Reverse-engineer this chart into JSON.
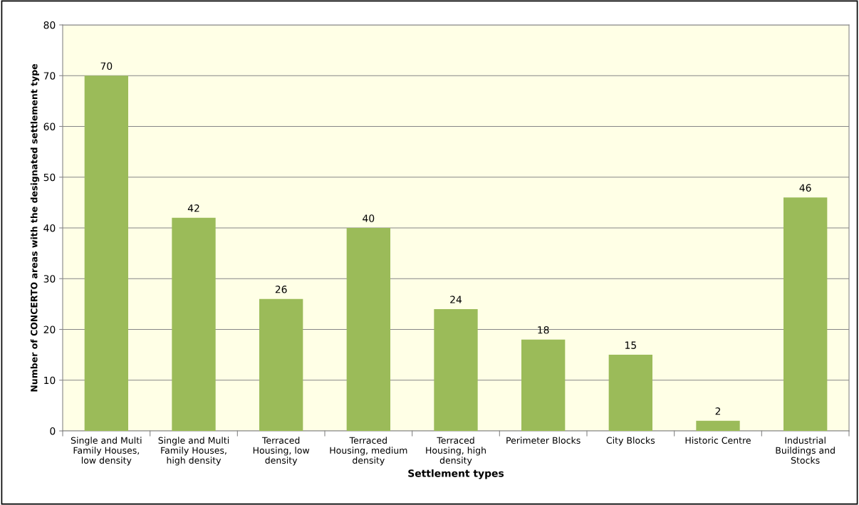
{
  "chart_data": {
    "type": "bar",
    "xlabel": "Settlement types",
    "ylabel": "Number of CONCERTO areas with the designated settlement type",
    "categories": [
      "Single and Multi Family Houses, low density",
      "Single and Multi Family Houses, high density",
      "Terraced Housing, low density",
      "Terraced Housing, medium density",
      "Terraced Housing, high density",
      "Perimeter Blocks",
      "City Blocks",
      "Historic Centre",
      "Industrial Buildings and Stocks"
    ],
    "values": [
      70,
      42,
      26,
      40,
      24,
      18,
      15,
      2,
      46
    ],
    "color": "#9bbb59",
    "ylim": [
      0,
      80
    ],
    "yticks": [
      0,
      10,
      20,
      30,
      40,
      50,
      60,
      70,
      80
    ],
    "grid": "y",
    "data_labels": true,
    "legend": false
  }
}
